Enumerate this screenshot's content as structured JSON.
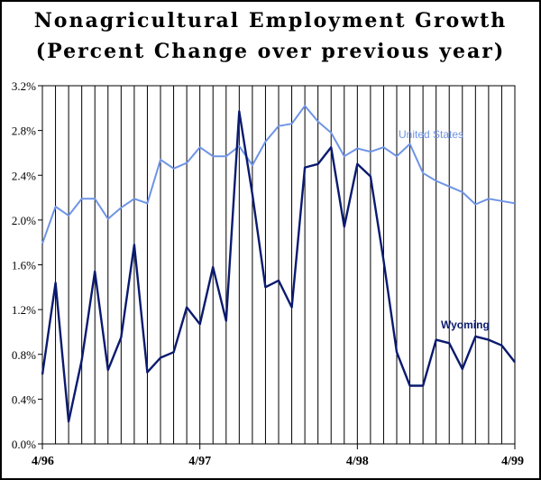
{
  "chart_data": {
    "type": "line",
    "title": "Nonagricultural Employment Growth",
    "subtitle": "(Percent Change over previous year)",
    "xlabel": "",
    "ylabel": "",
    "ylim": [
      0,
      3.2
    ],
    "yticks": [
      "0.0%",
      "0.4%",
      "0.8%",
      "1.2%",
      "1.6%",
      "2.0%",
      "2.4%",
      "2.8%",
      "3.2%"
    ],
    "ytick_values": [
      0,
      0.4,
      0.8,
      1.2,
      1.6,
      2.0,
      2.4,
      2.8,
      3.2
    ],
    "xticks": [
      {
        "index": 0,
        "label": "4/96"
      },
      {
        "index": 12,
        "label": "4/97"
      },
      {
        "index": 24,
        "label": "4/98"
      },
      {
        "index": 36,
        "label": "4/99"
      }
    ],
    "x": [
      "4/96",
      "5/96",
      "6/96",
      "7/96",
      "8/96",
      "9/96",
      "10/96",
      "11/96",
      "12/96",
      "1/97",
      "2/97",
      "3/97",
      "4/97",
      "5/97",
      "6/97",
      "7/97",
      "8/97",
      "9/97",
      "10/97",
      "11/97",
      "12/97",
      "1/98",
      "2/98",
      "3/98",
      "4/98",
      "5/98",
      "6/98",
      "7/98",
      "8/98",
      "9/98",
      "10/98",
      "11/98",
      "12/98",
      "1/99",
      "2/99",
      "3/99",
      "4/99"
    ],
    "grid": {
      "vertical": true,
      "horizontal": false
    },
    "series": [
      {
        "name": "United States",
        "color": "#6f94e6",
        "values": [
          1.79,
          2.12,
          2.04,
          2.19,
          2.19,
          2.01,
          2.11,
          2.19,
          2.15,
          2.54,
          2.46,
          2.51,
          2.65,
          2.57,
          2.57,
          2.66,
          2.49,
          2.7,
          2.84,
          2.86,
          3.02,
          2.88,
          2.78,
          2.57,
          2.64,
          2.61,
          2.65,
          2.57,
          2.68,
          2.42,
          2.35,
          2.3,
          2.25,
          2.14,
          2.19,
          2.17,
          2.15
        ]
      },
      {
        "name": "Wyoming",
        "color": "#0a1a6e",
        "values": [
          0.62,
          1.44,
          0.2,
          0.75,
          1.54,
          0.66,
          0.95,
          1.78,
          0.64,
          0.77,
          0.82,
          1.22,
          1.07,
          1.58,
          1.1,
          2.97,
          2.23,
          1.4,
          1.46,
          1.22,
          2.47,
          2.5,
          2.65,
          1.94,
          2.5,
          2.39,
          1.64,
          0.82,
          0.52,
          0.52,
          0.93,
          0.9,
          0.67,
          0.96,
          0.93,
          0.88,
          0.73
        ]
      }
    ]
  }
}
